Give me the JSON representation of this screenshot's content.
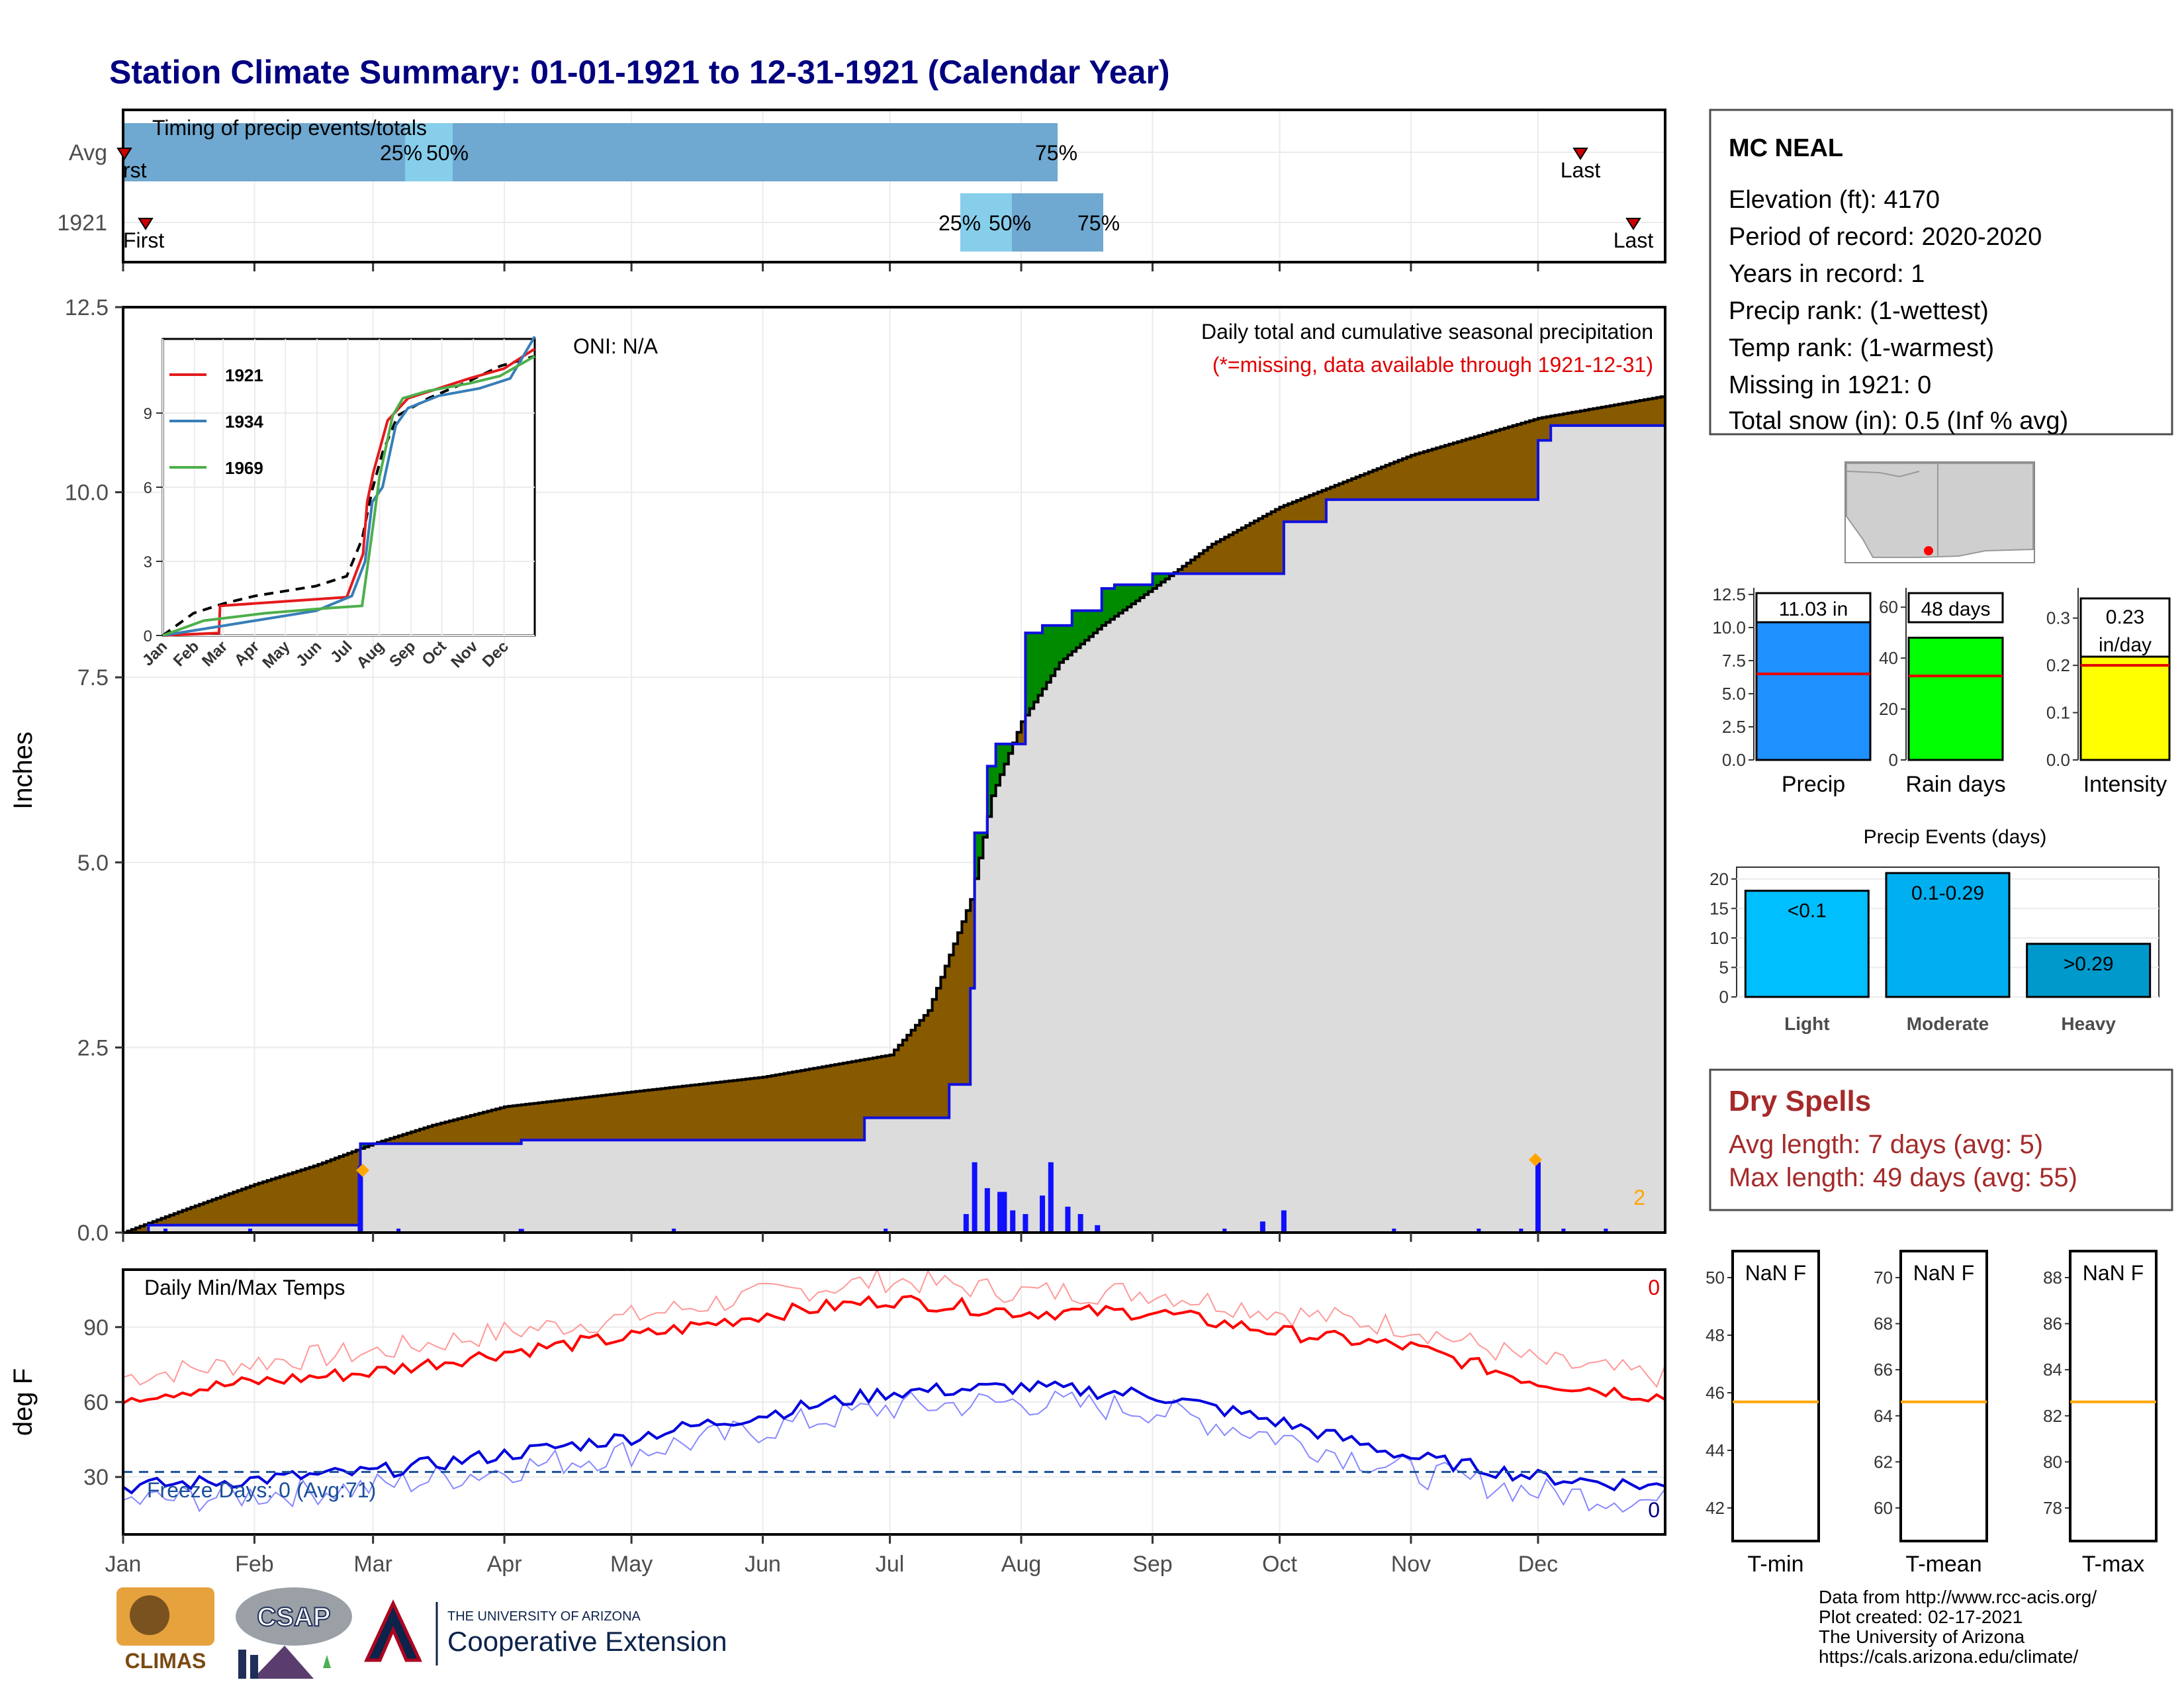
{
  "title": "Station Climate Summary: 01-01-1921 to 12-31-1921 (Calendar Year)",
  "months": [
    "Jan",
    "Feb",
    "Mar",
    "Apr",
    "May",
    "Jun",
    "Jul",
    "Aug",
    "Sep",
    "Oct",
    "Nov",
    "Dec"
  ],
  "timing": {
    "label": "Timing of precip events/totals",
    "rows": [
      {
        "name": "Avg",
        "first": "rst",
        "last": "Last",
        "p25": "25%",
        "p50": "50%",
        "p75": "75%"
      },
      {
        "name": "1921",
        "first": "First",
        "last": "Last",
        "p25": "25%",
        "p50": "50%",
        "p75": "75%"
      }
    ]
  },
  "station": {
    "name": "MC NEAL",
    "lines": [
      "Elevation (ft): 4170",
      "Period of record: 2020-2020",
      "Years in record: 1",
      "Precip rank:  (1-wettest)",
      "Temp rank:  (1-warmest)",
      "Missing in 1921: 0",
      "Total snow (in): 0.5 (Inf % avg)"
    ]
  },
  "precip": {
    "ylabel": "Inches",
    "yticks": [
      "0.0",
      "2.5",
      "5.0",
      "7.5",
      "10.0",
      "12.5"
    ],
    "caption": "Daily total and cumulative seasonal precipitation",
    "missing_note": "(*=missing, data available through 1921-12-31)",
    "oni": "ONI: N/A",
    "corner_count": "2"
  },
  "inset": {
    "yticks": [
      "0",
      "3",
      "6",
      "9"
    ],
    "legend": [
      "1921",
      "1934",
      "1969"
    ],
    "colors": {
      "1921": "#e41a1c",
      "1934": "#377eb8",
      "1969": "#4daf4a",
      "avg": "#000000"
    }
  },
  "mini_bars": [
    {
      "label": "Precip",
      "value_label": "11.03 in",
      "yticks": [
        "0.0",
        "2.5",
        "5.0",
        "7.5",
        "10.0",
        "12.5"
      ],
      "color": "#1e90ff"
    },
    {
      "label": "Rain days",
      "value_label": "48 days",
      "yticks": [
        "0",
        "20",
        "40",
        "60"
      ],
      "color": "#00ff00"
    },
    {
      "label": "Intensity",
      "value_label": "0.23 in/day",
      "value_line1": "0.23",
      "value_line2": "in/day",
      "yticks": [
        "0.0",
        "0.1",
        "0.2",
        "0.3"
      ],
      "color": "#ffff00"
    }
  ],
  "events": {
    "title": "Precip Events (days)",
    "yticks": [
      "0",
      "5",
      "10",
      "15",
      "20"
    ],
    "bars": [
      {
        "category": "Light",
        "label": "<0.1",
        "value": 18
      },
      {
        "category": "Moderate",
        "label": "0.1-0.29",
        "value": 21
      },
      {
        "category": "Heavy",
        "label": ">0.29",
        "value": 9
      }
    ]
  },
  "dry": {
    "title": "Dry Spells",
    "avg": "Avg length: 7 days (avg: 5)",
    "max": "Max length: 49 days (avg: 55)"
  },
  "temps": {
    "ylabel": "deg F",
    "yticks": [
      "30",
      "60",
      "90"
    ],
    "title": "Daily Min/Max Temps",
    "freeze": "Freeze Days: 0 (Avg:71)",
    "top_count": "0",
    "bottom_count": "0"
  },
  "temp_boxes": [
    {
      "label": "T-min",
      "value": "NaN F",
      "yticks": [
        "42",
        "44",
        "46",
        "48",
        "50"
      ]
    },
    {
      "label": "T-mean",
      "value": "NaN F",
      "yticks": [
        "60",
        "62",
        "64",
        "66",
        "68",
        "70"
      ]
    },
    {
      "label": "T-max",
      "value": "NaN F",
      "yticks": [
        "78",
        "80",
        "82",
        "84",
        "86",
        "88"
      ]
    }
  ],
  "footer": {
    "lines": [
      "Data from http://www.rcc-acis.org/",
      "Plot created: 02-17-2021",
      "The University of Arizona",
      "https://cals.arizona.edu/climate/"
    ],
    "climas": "CLIMAS",
    "csap": "CSAP",
    "ua_small": "THE UNIVERSITY OF ARIZONA",
    "ua_big": "Cooperative Extension"
  },
  "chart_data": [
    {
      "type": "area",
      "title": "Daily total and cumulative seasonal precipitation",
      "ylabel": "Inches",
      "ylim": [
        0,
        12.5
      ],
      "series": [
        {
          "name": "Avg",
          "x": [
            "01-01",
            "01-15",
            "02-01",
            "02-15",
            "03-01",
            "03-15",
            "04-01",
            "05-01",
            "06-01",
            "07-01",
            "07-10",
            "07-20",
            "07-25",
            "08-01",
            "08-10",
            "08-20",
            "09-01",
            "09-15",
            "10-01",
            "11-01",
            "12-01",
            "12-31"
          ],
          "y": [
            0,
            0.3,
            0.65,
            0.9,
            1.2,
            1.45,
            1.7,
            1.9,
            2.1,
            2.4,
            3.0,
            4.5,
            5.9,
            6.9,
            7.7,
            8.2,
            8.7,
            9.3,
            9.8,
            10.5,
            11.0,
            11.3
          ]
        },
        {
          "name": "1921",
          "x": [
            "01-01",
            "01-07",
            "02-24",
            "02-26",
            "04-05",
            "06-25",
            "07-15",
            "07-20",
            "07-21",
            "07-24",
            "07-26",
            "08-02",
            "08-06",
            "08-13",
            "08-20",
            "08-23",
            "09-01",
            "10-02",
            "10-12",
            "12-01",
            "12-04",
            "12-31"
          ],
          "y": [
            0,
            0.1,
            0.1,
            1.2,
            1.25,
            1.55,
            2.0,
            3.3,
            5.4,
            6.3,
            6.6,
            8.1,
            8.2,
            8.4,
            8.7,
            8.75,
            8.9,
            9.6,
            9.9,
            10.7,
            10.9,
            11.03
          ]
        }
      ],
      "daily_bars": {
        "x": [
          "02-26",
          "04-05",
          "07-19",
          "07-21",
          "07-24",
          "07-27",
          "07-28",
          "07-30",
          "08-02",
          "08-06",
          "08-08",
          "08-12",
          "08-15",
          "08-19",
          "09-27",
          "10-02",
          "12-01"
        ],
        "y": [
          0.9,
          0.05,
          0.25,
          0.95,
          0.6,
          0.55,
          0.55,
          0.3,
          0.25,
          0.5,
          0.95,
          0.35,
          0.25,
          0.1,
          0.15,
          0.3,
          0.95
        ]
      }
    },
    {
      "type": "line",
      "title": "Daily Min/Max Temps",
      "ylabel": "deg F",
      "series": [
        {
          "name": "Max",
          "x": [
            "01-01",
            "02-01",
            "03-01",
            "04-01",
            "05-01",
            "06-01",
            "07-01",
            "08-01",
            "09-01",
            "10-01",
            "11-01",
            "12-01",
            "12-31"
          ],
          "y": [
            62,
            68,
            72,
            80,
            86,
            95,
            101,
            96,
            96,
            88,
            82,
            68,
            62
          ]
        },
        {
          "name": "Min",
          "x": [
            "01-01",
            "02-01",
            "03-01",
            "04-01",
            "05-01",
            "06-01",
            "07-01",
            "08-01",
            "09-01",
            "10-01",
            "11-01",
            "12-01",
            "12-31"
          ],
          "y": [
            26,
            29,
            32,
            39,
            46,
            55,
            64,
            66,
            63,
            52,
            38,
            30,
            26
          ]
        }
      ],
      "reference": 32
    }
  ]
}
